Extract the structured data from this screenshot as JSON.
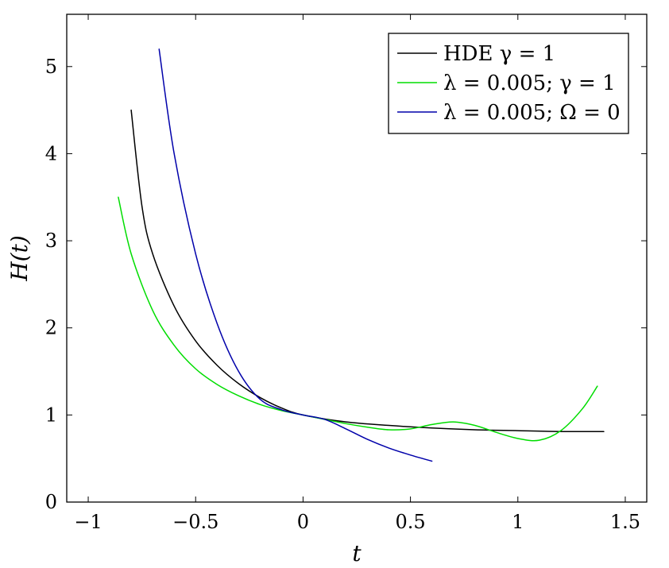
{
  "chart_data": {
    "type": "line",
    "xlabel": "t",
    "ylabel": "H(t)",
    "xlim": [
      -1.1,
      1.6
    ],
    "ylim": [
      0,
      5.6
    ],
    "xticks": [
      -1,
      -0.5,
      0,
      0.5,
      1,
      1.5
    ],
    "xtick_labels": [
      "−1",
      "−0.5",
      "0",
      "0.5",
      "1",
      "1.5"
    ],
    "yticks": [
      0,
      1,
      2,
      3,
      4,
      5
    ],
    "ytick_labels": [
      "0",
      "1",
      "2",
      "3",
      "4",
      "5"
    ],
    "grid": false,
    "legend_position": "top-right",
    "series": [
      {
        "name": "HDE γ = 1",
        "color": "#000000",
        "x": [
          -0.8,
          -0.75,
          -0.7,
          -0.6,
          -0.5,
          -0.4,
          -0.3,
          -0.2,
          -0.1,
          0,
          0.2,
          0.4,
          0.6,
          0.8,
          1.0,
          1.2,
          1.4
        ],
        "y": [
          4.5,
          3.4,
          2.85,
          2.25,
          1.85,
          1.57,
          1.36,
          1.2,
          1.08,
          1.0,
          0.92,
          0.88,
          0.85,
          0.83,
          0.82,
          0.81,
          0.81
        ]
      },
      {
        "name": "λ = 0.005; γ = 1",
        "color": "#00dd00",
        "x": [
          -0.86,
          -0.8,
          -0.7,
          -0.6,
          -0.5,
          -0.4,
          -0.3,
          -0.2,
          -0.1,
          0,
          0.1,
          0.2,
          0.3,
          0.4,
          0.5,
          0.6,
          0.7,
          0.8,
          0.9,
          1.0,
          1.1,
          1.2,
          1.3,
          1.37
        ],
        "y": [
          3.5,
          2.85,
          2.2,
          1.8,
          1.53,
          1.35,
          1.22,
          1.12,
          1.05,
          1.0,
          0.95,
          0.9,
          0.86,
          0.83,
          0.84,
          0.89,
          0.92,
          0.88,
          0.8,
          0.73,
          0.71,
          0.82,
          1.07,
          1.33
        ]
      },
      {
        "name": "λ = 0.005; Ω = 0",
        "color": "#0000aa",
        "x": [
          -0.67,
          -0.6,
          -0.5,
          -0.4,
          -0.3,
          -0.2,
          -0.1,
          0,
          0.1,
          0.2,
          0.3,
          0.4,
          0.5,
          0.6
        ],
        "y": [
          5.2,
          4.0,
          2.85,
          2.05,
          1.5,
          1.18,
          1.06,
          1.0,
          0.95,
          0.84,
          0.72,
          0.62,
          0.54,
          0.47
        ]
      }
    ]
  }
}
